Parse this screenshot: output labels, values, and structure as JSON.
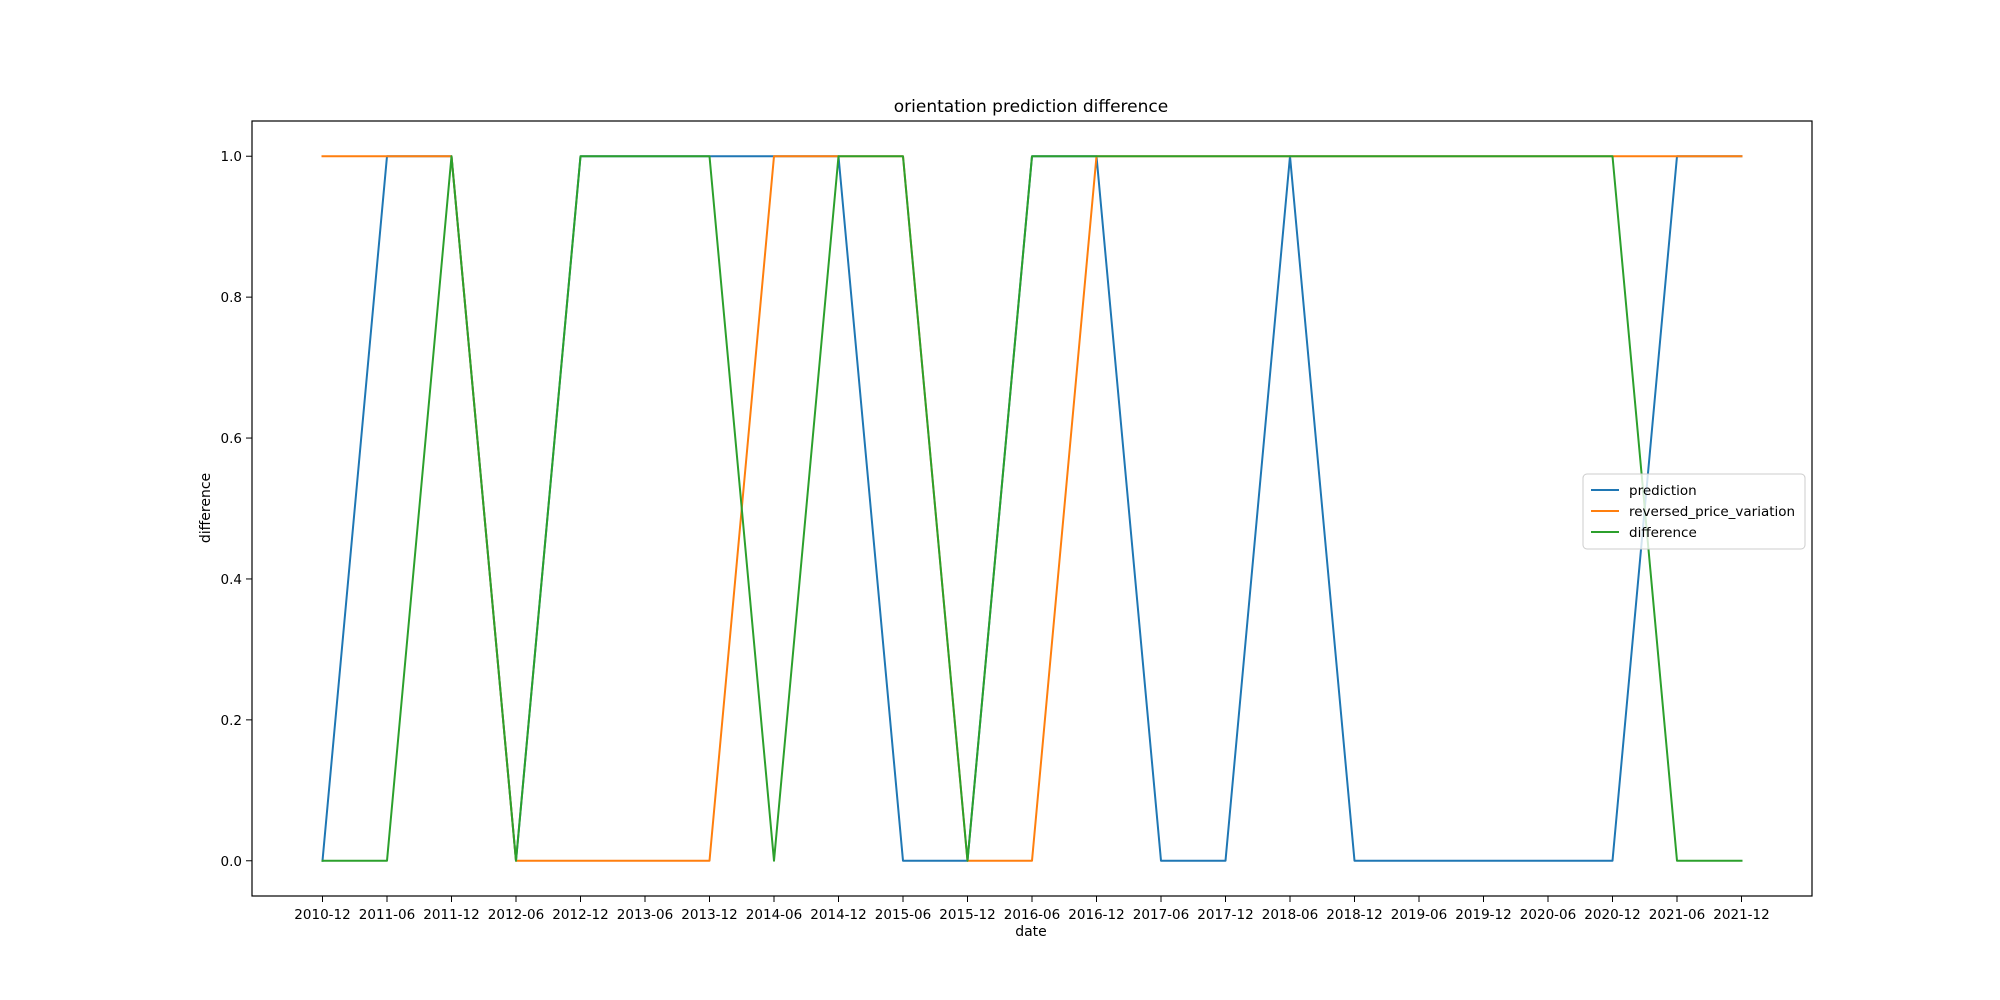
{
  "chart_data": {
    "type": "line",
    "title": "orientation prediction difference",
    "xlabel": "date",
    "ylabel": "difference",
    "x": [
      "2010-12",
      "2011-06",
      "2011-12",
      "2012-06",
      "2012-12",
      "2013-06",
      "2013-12",
      "2014-06",
      "2014-12",
      "2015-06",
      "2015-12",
      "2016-06",
      "2016-12",
      "2017-06",
      "2017-12",
      "2018-06",
      "2018-12",
      "2019-06",
      "2019-12",
      "2020-06",
      "2020-12",
      "2021-06",
      "2021-12"
    ],
    "xlim": [
      "2010-12",
      "2021-12"
    ],
    "ylim": [
      -0.05,
      1.05
    ],
    "yticks": [
      0.0,
      0.2,
      0.4,
      0.6,
      0.8,
      1.0
    ],
    "ytick_labels": [
      "0.0",
      "0.2",
      "0.4",
      "0.6",
      "0.8",
      "1.0"
    ],
    "grid": false,
    "legend_position": "center-right",
    "series": [
      {
        "name": "prediction",
        "color": "#1f77b4",
        "values": [
          0,
          1,
          1,
          0,
          1,
          1,
          1,
          1,
          1,
          0,
          0,
          1,
          1,
          0,
          0,
          1,
          0,
          0,
          0,
          0,
          0,
          1,
          1
        ]
      },
      {
        "name": "reversed_price_variation",
        "color": "#ff7f0e",
        "values": [
          1,
          1,
          1,
          0,
          0,
          0,
          0,
          1,
          1,
          1,
          0,
          0,
          1,
          1,
          1,
          1,
          1,
          1,
          1,
          1,
          1,
          1,
          1
        ]
      },
      {
        "name": "difference",
        "color": "#2ca02c",
        "values": [
          0,
          0,
          1,
          0,
          1,
          1,
          1,
          0,
          1,
          1,
          0,
          1,
          1,
          1,
          1,
          1,
          1,
          1,
          1,
          1,
          1,
          0,
          0
        ]
      }
    ]
  }
}
